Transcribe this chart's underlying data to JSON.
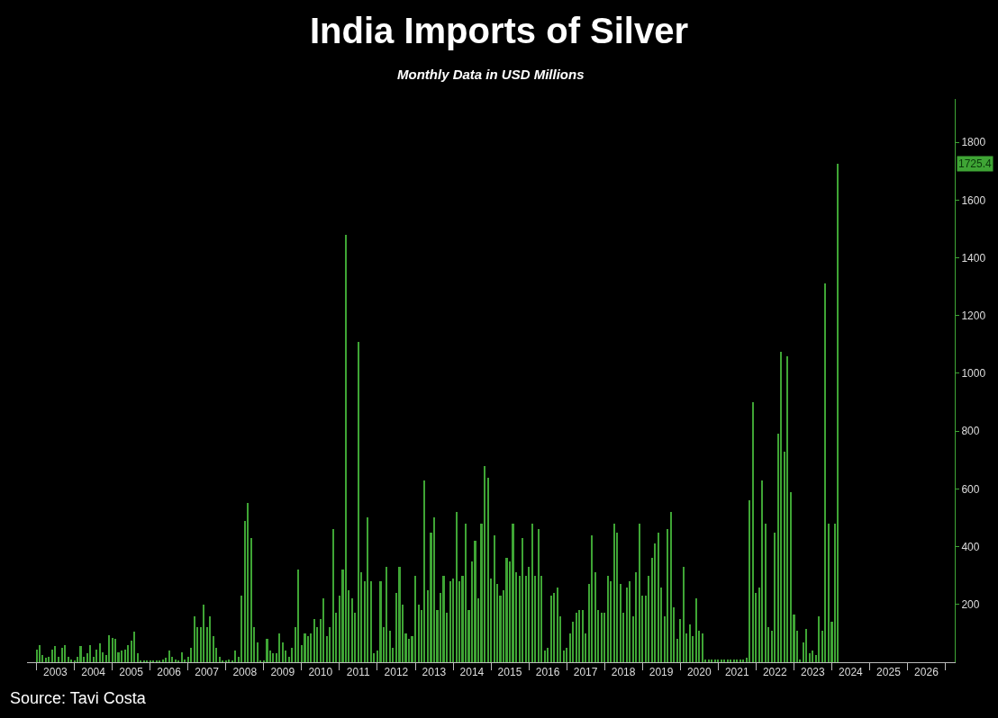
{
  "chart_data": {
    "type": "bar",
    "title": "India Imports of Silver",
    "subtitle": "Monthly Data in USD Millions",
    "annotations": [
      "Source: Tavi Costa",
      "1725.4"
    ],
    "color": "#3fa535",
    "xlim": [
      "2002-10",
      "2027-04"
    ],
    "xticks": [
      {
        "value": "2003-01",
        "label": null
      },
      {
        "value": "2003-07",
        "label": "2003"
      },
      {
        "value": "2004-01",
        "label": null
      },
      {
        "value": "2004-07",
        "label": "2004"
      },
      {
        "value": "2005-01",
        "label": null
      },
      {
        "value": "2005-07",
        "label": "2005"
      },
      {
        "value": "2006-01",
        "label": null
      },
      {
        "value": "2006-07",
        "label": "2006"
      },
      {
        "value": "2007-01",
        "label": null
      },
      {
        "value": "2007-07",
        "label": "2007"
      },
      {
        "value": "2008-01",
        "label": null
      },
      {
        "value": "2008-07",
        "label": "2008"
      },
      {
        "value": "2009-01",
        "label": null
      },
      {
        "value": "2009-07",
        "label": "2009"
      },
      {
        "value": "2010-01",
        "label": null
      },
      {
        "value": "2010-07",
        "label": "2010"
      },
      {
        "value": "2011-01",
        "label": null
      },
      {
        "value": "2011-07",
        "label": "2011"
      },
      {
        "value": "2012-01",
        "label": null
      },
      {
        "value": "2012-07",
        "label": "2012"
      },
      {
        "value": "2013-01",
        "label": null
      },
      {
        "value": "2013-07",
        "label": "2013"
      },
      {
        "value": "2014-01",
        "label": null
      },
      {
        "value": "2014-07",
        "label": "2014"
      },
      {
        "value": "2015-01",
        "label": null
      },
      {
        "value": "2015-07",
        "label": "2015"
      },
      {
        "value": "2016-01",
        "label": null
      },
      {
        "value": "2016-07",
        "label": "2016"
      },
      {
        "value": "2017-01",
        "label": null
      },
      {
        "value": "2017-07",
        "label": "2017"
      },
      {
        "value": "2018-01",
        "label": null
      },
      {
        "value": "2018-07",
        "label": "2018"
      },
      {
        "value": "2019-01",
        "label": null
      },
      {
        "value": "2019-07",
        "label": "2019"
      },
      {
        "value": "2020-01",
        "label": null
      },
      {
        "value": "2020-07",
        "label": "2020"
      },
      {
        "value": "2021-01",
        "label": null
      },
      {
        "value": "2021-07",
        "label": "2021"
      },
      {
        "value": "2022-01",
        "label": null
      },
      {
        "value": "2022-07",
        "label": "2022"
      },
      {
        "value": "2023-01",
        "label": null
      },
      {
        "value": "2023-07",
        "label": "2023"
      },
      {
        "value": "2024-01",
        "label": null
      },
      {
        "value": "2024-07",
        "label": "2024"
      },
      {
        "value": "2025-01",
        "label": null
      },
      {
        "value": "2025-07",
        "label": "2025"
      },
      {
        "value": "2026-01",
        "label": null
      },
      {
        "value": "2026-07",
        "label": "2026"
      },
      {
        "value": "2027-01",
        "label": null
      }
    ],
    "ylim": [
      0,
      1950
    ],
    "yticks": [
      200,
      400,
      600,
      800,
      1000,
      1200,
      1400,
      1600,
      1800
    ],
    "x": [
      "2003-01",
      "2003-02",
      "2003-03",
      "2003-04",
      "2003-05",
      "2003-06",
      "2003-07",
      "2003-08",
      "2003-09",
      "2003-10",
      "2003-11",
      "2003-12",
      "2004-01",
      "2004-02",
      "2004-03",
      "2004-04",
      "2004-05",
      "2004-06",
      "2004-07",
      "2004-08",
      "2004-09",
      "2004-10",
      "2004-11",
      "2004-12",
      "2005-01",
      "2005-02",
      "2005-03",
      "2005-04",
      "2005-05",
      "2005-06",
      "2005-07",
      "2005-08",
      "2005-09",
      "2005-10",
      "2005-11",
      "2005-12",
      "2006-01",
      "2006-02",
      "2006-03",
      "2006-04",
      "2006-05",
      "2006-06",
      "2006-07",
      "2006-08",
      "2006-09",
      "2006-10",
      "2006-11",
      "2006-12",
      "2007-01",
      "2007-02",
      "2007-03",
      "2007-04",
      "2007-05",
      "2007-06",
      "2007-07",
      "2007-08",
      "2007-09",
      "2007-10",
      "2007-11",
      "2007-12",
      "2008-01",
      "2008-02",
      "2008-03",
      "2008-04",
      "2008-05",
      "2008-06",
      "2008-07",
      "2008-08",
      "2008-09",
      "2008-10",
      "2008-11",
      "2008-12",
      "2009-01",
      "2009-02",
      "2009-03",
      "2009-04",
      "2009-05",
      "2009-06",
      "2009-07",
      "2009-08",
      "2009-09",
      "2009-10",
      "2009-11",
      "2009-12",
      "2010-01",
      "2010-02",
      "2010-03",
      "2010-04",
      "2010-05",
      "2010-06",
      "2010-07",
      "2010-08",
      "2010-09",
      "2010-10",
      "2010-11",
      "2010-12",
      "2011-01",
      "2011-02",
      "2011-03",
      "2011-04",
      "2011-05",
      "2011-06",
      "2011-07",
      "2011-08",
      "2011-09",
      "2011-10",
      "2011-11",
      "2011-12",
      "2012-01",
      "2012-02",
      "2012-03",
      "2012-04",
      "2012-05",
      "2012-06",
      "2012-07",
      "2012-08",
      "2012-09",
      "2012-10",
      "2012-11",
      "2012-12",
      "2013-01",
      "2013-02",
      "2013-03",
      "2013-04",
      "2013-05",
      "2013-06",
      "2013-07",
      "2013-08",
      "2013-09",
      "2013-10",
      "2013-11",
      "2013-12",
      "2014-01",
      "2014-02",
      "2014-03",
      "2014-04",
      "2014-05",
      "2014-06",
      "2014-07",
      "2014-08",
      "2014-09",
      "2014-10",
      "2014-11",
      "2014-12",
      "2015-01",
      "2015-02",
      "2015-03",
      "2015-04",
      "2015-05",
      "2015-06",
      "2015-07",
      "2015-08",
      "2015-09",
      "2015-10",
      "2015-11",
      "2015-12",
      "2016-01",
      "2016-02",
      "2016-03",
      "2016-04",
      "2016-05",
      "2016-06",
      "2016-07",
      "2016-08",
      "2016-09",
      "2016-10",
      "2016-11",
      "2016-12",
      "2017-01",
      "2017-02",
      "2017-03",
      "2017-04",
      "2017-05",
      "2017-06",
      "2017-07",
      "2017-08",
      "2017-09",
      "2017-10",
      "2017-11",
      "2017-12",
      "2018-01",
      "2018-02",
      "2018-03",
      "2018-04",
      "2018-05",
      "2018-06",
      "2018-07",
      "2018-08",
      "2018-09",
      "2018-10",
      "2018-11",
      "2018-12",
      "2019-01",
      "2019-02",
      "2019-03",
      "2019-04",
      "2019-05",
      "2019-06",
      "2019-07",
      "2019-08",
      "2019-09",
      "2019-10",
      "2019-11",
      "2019-12",
      "2020-01",
      "2020-02",
      "2020-03",
      "2020-04",
      "2020-05",
      "2020-06",
      "2020-07",
      "2020-08",
      "2020-09",
      "2020-10",
      "2020-11",
      "2020-12",
      "2021-01",
      "2021-02",
      "2021-03",
      "2021-04",
      "2021-05",
      "2021-06",
      "2021-07",
      "2021-08",
      "2021-09",
      "2021-10",
      "2021-11",
      "2021-12",
      "2022-01",
      "2022-02",
      "2022-03",
      "2022-04",
      "2022-05",
      "2022-06",
      "2022-07",
      "2022-08",
      "2022-09",
      "2022-10",
      "2022-11",
      "2022-12",
      "2023-01",
      "2023-02",
      "2023-03",
      "2023-04",
      "2023-05",
      "2023-06",
      "2023-07",
      "2023-08",
      "2023-09",
      "2023-10",
      "2023-11",
      "2023-12",
      "2024-01",
      "2024-02",
      "2024-03"
    ],
    "values": [
      45,
      60,
      25,
      15,
      20,
      45,
      55,
      20,
      50,
      60,
      20,
      10,
      5,
      20,
      55,
      20,
      30,
      60,
      20,
      45,
      65,
      35,
      25,
      95,
      85,
      80,
      35,
      40,
      45,
      60,
      75,
      105,
      30,
      5,
      5,
      5,
      5,
      5,
      5,
      5,
      10,
      15,
      40,
      20,
      10,
      5,
      35,
      10,
      20,
      50,
      160,
      120,
      120,
      200,
      120,
      160,
      90,
      50,
      20,
      5,
      5,
      10,
      5,
      40,
      20,
      230,
      490,
      550,
      430,
      120,
      70,
      5,
      5,
      80,
      40,
      30,
      30,
      100,
      70,
      40,
      20,
      50,
      120,
      320,
      60,
      100,
      90,
      100,
      150,
      120,
      150,
      220,
      90,
      120,
      460,
      170,
      230,
      320,
      1480,
      250,
      220,
      170,
      1110,
      310,
      280,
      500,
      280,
      30,
      40,
      280,
      120,
      330,
      110,
      50,
      240,
      330,
      200,
      100,
      80,
      90,
      300,
      200,
      180,
      630,
      250,
      450,
      500,
      180,
      240,
      300,
      170,
      280,
      290,
      520,
      280,
      300,
      480,
      180,
      350,
      420,
      220,
      480,
      680,
      640,
      290,
      440,
      270,
      230,
      250,
      360,
      350,
      480,
      310,
      300,
      430,
      300,
      330,
      480,
      300,
      460,
      300,
      40,
      50,
      230,
      240,
      260,
      160,
      40,
      50,
      100,
      140,
      170,
      180,
      180,
      100,
      270,
      440,
      310,
      180,
      170,
      170,
      300,
      280,
      480,
      450,
      270,
      170,
      260,
      280,
      160,
      310,
      480,
      230,
      230,
      300,
      360,
      410,
      450,
      260,
      160,
      460,
      520,
      190,
      80,
      150,
      330,
      100,
      130,
      90,
      220,
      110,
      100,
      10,
      10,
      10,
      10,
      10,
      10,
      10,
      10,
      10,
      10,
      10,
      10,
      10,
      15,
      560,
      900,
      240,
      260,
      630,
      480,
      120,
      110,
      450,
      790,
      1075,
      730,
      1060,
      590,
      165,
      110,
      10,
      70,
      115,
      30,
      40,
      25,
      160,
      110,
      1310,
      480,
      140,
      480,
      1725.4
    ]
  }
}
